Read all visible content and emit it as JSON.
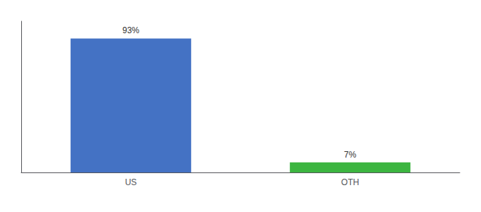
{
  "chart_data": {
    "type": "bar",
    "categories": [
      "US",
      "OTH"
    ],
    "values": [
      93,
      7
    ],
    "value_labels": [
      "93%",
      "7%"
    ],
    "colors": [
      "#4472c4",
      "#3cb540"
    ],
    "ylim": [
      0,
      105
    ],
    "data_labels": true,
    "tick_labels": "x",
    "grid": false
  }
}
